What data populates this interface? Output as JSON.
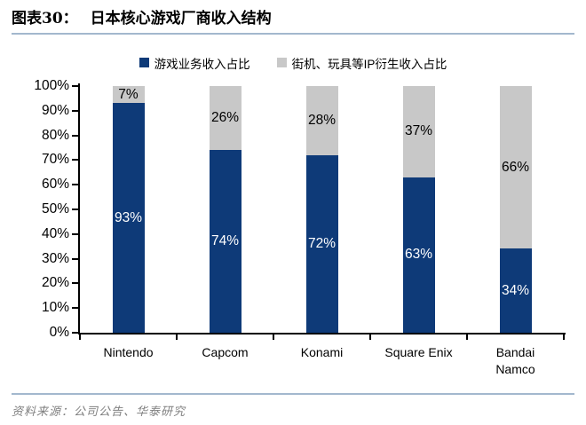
{
  "header": {
    "figure_label": "图表30：",
    "title": "日本核心游戏厂商收入结构"
  },
  "footer": {
    "source": "资料来源：公司公告、华泰研究"
  },
  "colors": {
    "bar_primary": "#0E3A78",
    "bar_secondary": "#C8C8C8",
    "rule_line": "#A3B8CE",
    "source_text": "#7F7F7F",
    "axis": "#000000"
  },
  "chart_data": {
    "type": "bar",
    "stacked": true,
    "title": "日本核心游戏厂商收入结构",
    "categories": [
      "Nintendo",
      "Capcom",
      "Konami",
      "Square Enix",
      "Bandai\nNamco"
    ],
    "series": [
      {
        "name": "游戏业务收入占比",
        "color": "#0E3A78",
        "label_color": "#FFFFFF",
        "values": [
          93,
          74,
          72,
          63,
          34
        ]
      },
      {
        "name": "街机、玩具等IP衍生收入占比",
        "color": "#C8C8C8",
        "label_color": "#000000",
        "values": [
          7,
          26,
          28,
          37,
          66
        ]
      }
    ],
    "xlabel": "",
    "ylabel": "",
    "ylim": [
      0,
      100
    ],
    "y_ticks": [
      "0%",
      "10%",
      "20%",
      "30%",
      "40%",
      "50%",
      "60%",
      "70%",
      "80%",
      "90%",
      "100%"
    ],
    "data_label_format": "{value}%",
    "legend_position": "top",
    "grid": "off"
  }
}
